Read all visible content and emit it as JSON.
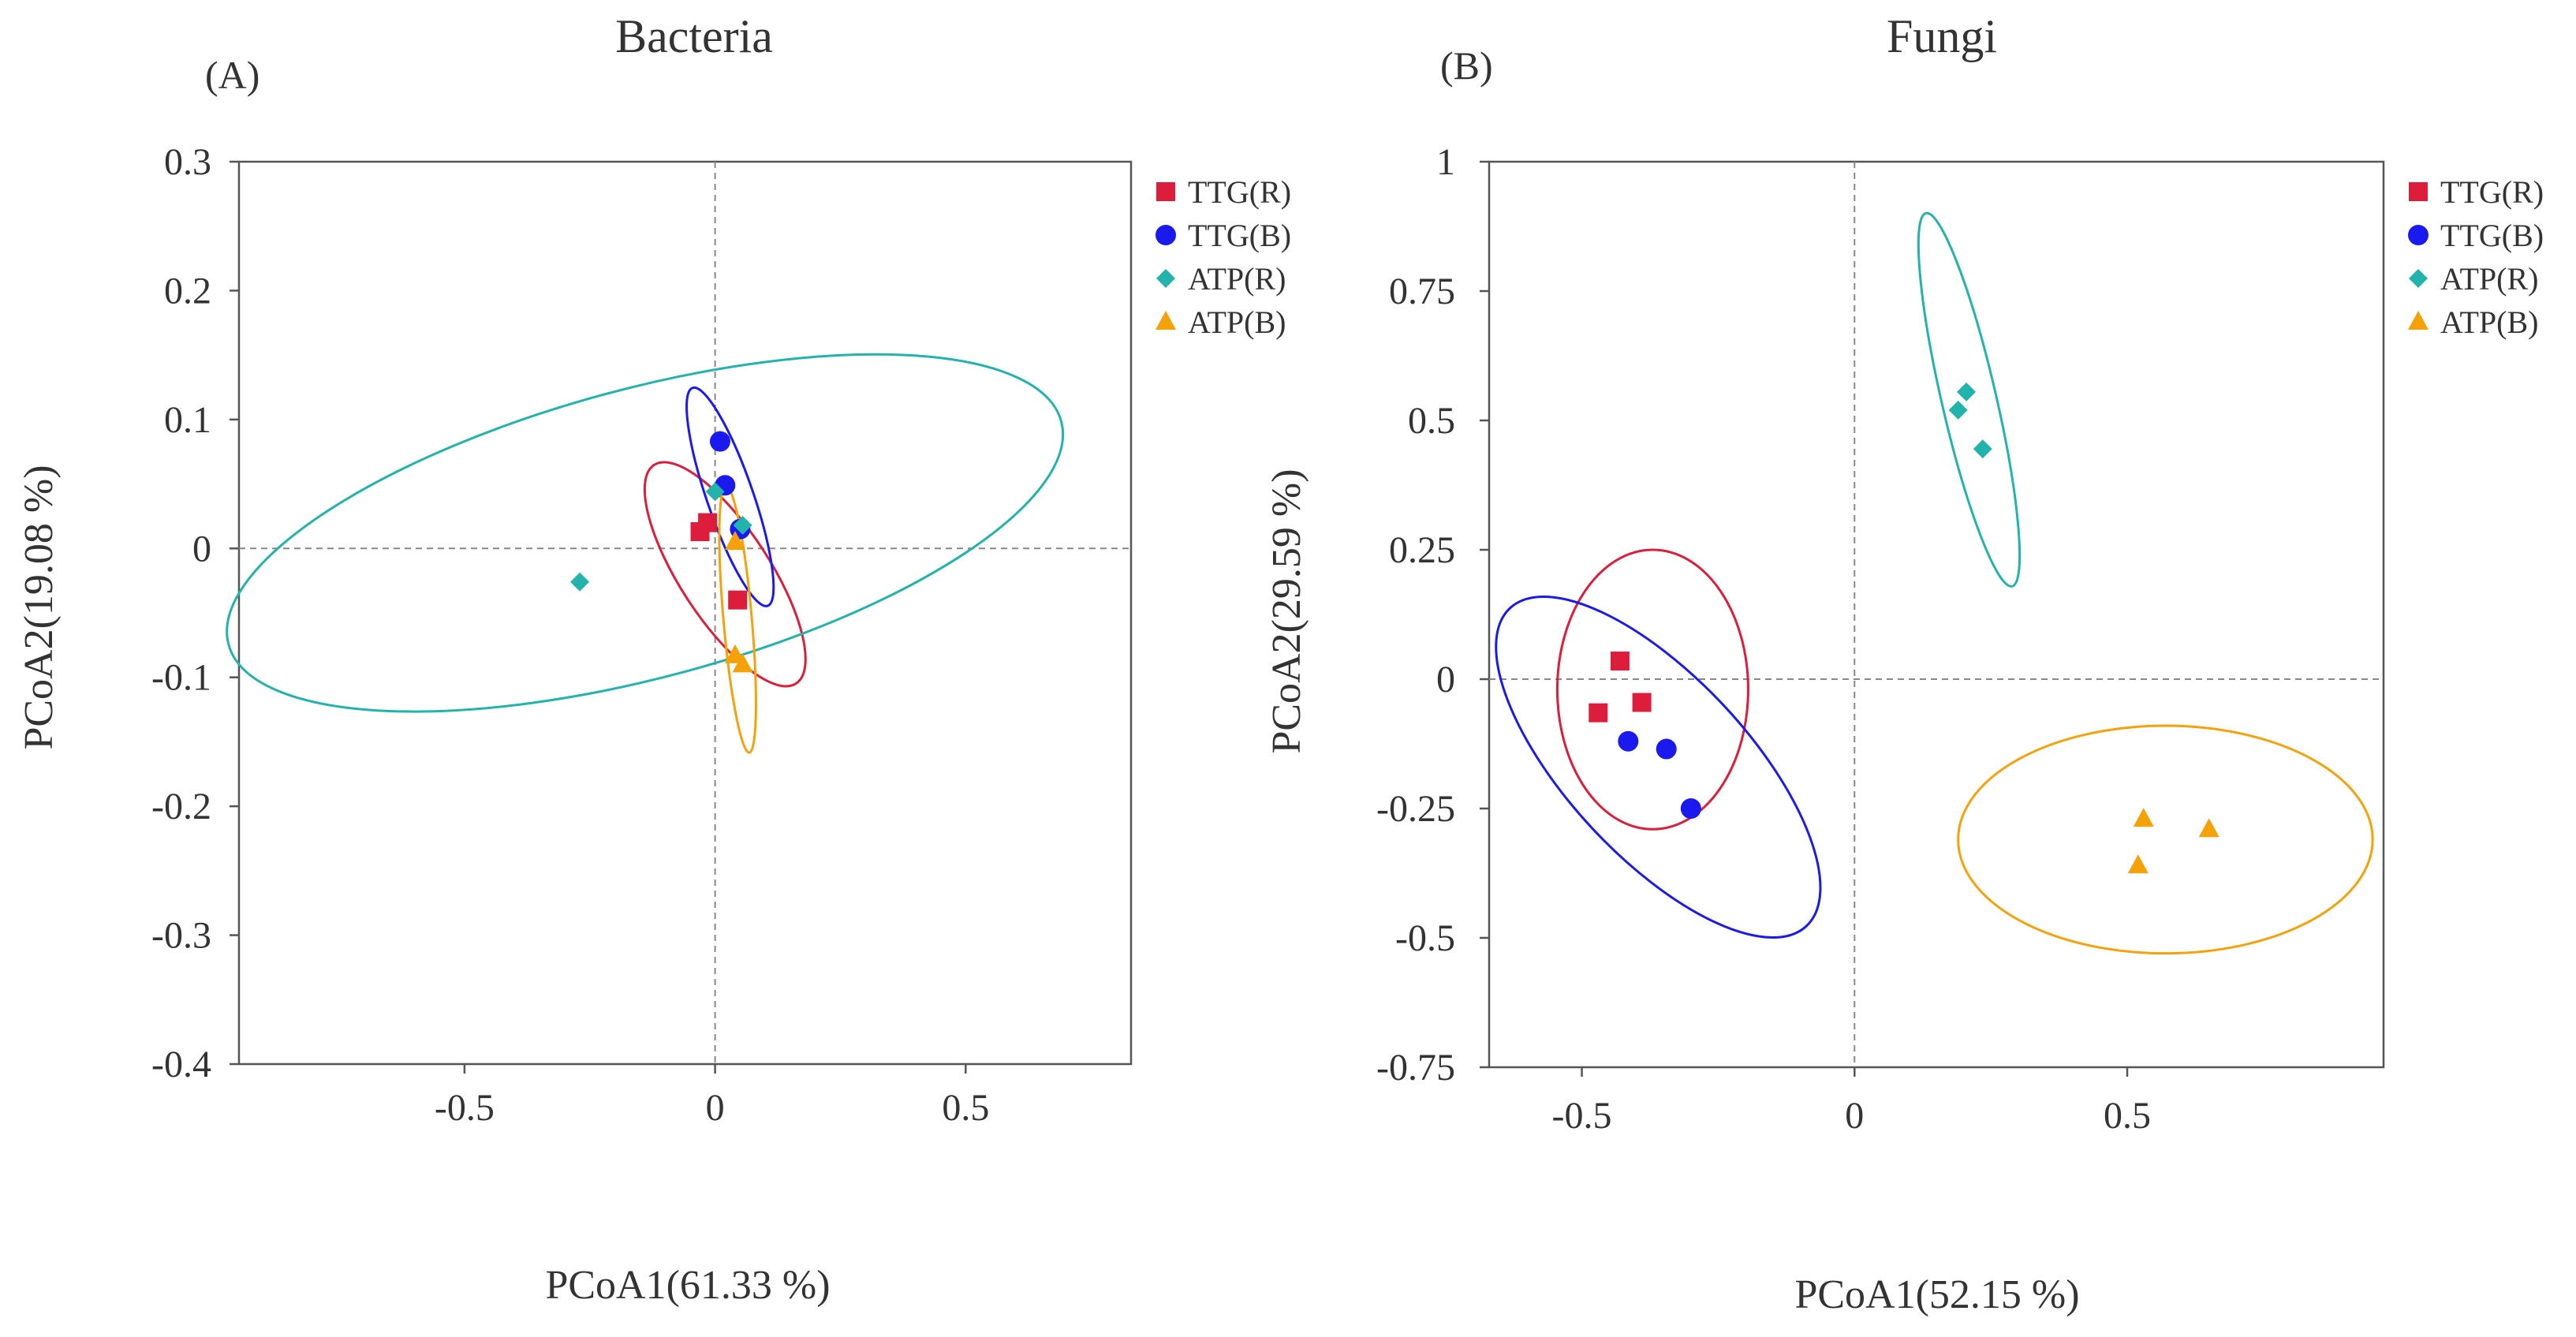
{
  "chart_data": [
    {
      "type": "scatter",
      "panel_tag": "(A)",
      "title": "Bacteria",
      "xlabel": "PCoA1(61.33 %)",
      "ylabel": "PCoA2(19.08 %)",
      "xlim": [
        -0.95,
        0.83
      ],
      "ylim": [
        -0.4,
        0.3
      ],
      "xticks": [
        -0.5,
        0,
        0.5
      ],
      "xtick_labels": [
        "-0.5",
        "0",
        "0.5"
      ],
      "yticks": [
        -0.4,
        -0.3,
        -0.2,
        -0.1,
        0,
        0.1,
        0.2,
        0.3
      ],
      "ytick_labels": [
        "-0.4",
        "-0.3",
        "-0.2",
        "-0.1",
        "0",
        "0.1",
        "0.2",
        "0.3"
      ],
      "grid": false,
      "reference_lines": {
        "x": 0,
        "y": 0
      },
      "legend_position": "outside-right-top",
      "series": [
        {
          "name": "TTG(R)",
          "marker": "square",
          "color": "#dc1e3c",
          "points": [
            [
              -0.03,
              0.013
            ],
            [
              -0.015,
              0.02
            ],
            [
              0.045,
              -0.04
            ]
          ],
          "ellipse": {
            "cx": 0.02,
            "cy": -0.02,
            "rx": 0.26,
            "ry": 0.035,
            "angle_deg": -57
          }
        },
        {
          "name": "TTG(B)",
          "marker": "circle",
          "color": "#1a1aee",
          "points": [
            [
              0.01,
              0.083
            ],
            [
              0.02,
              0.049
            ],
            [
              0.05,
              0.015
            ]
          ],
          "ellipse": {
            "cx": 0.03,
            "cy": 0.04,
            "rx": 0.23,
            "ry": 0.018,
            "angle_deg": -71
          }
        },
        {
          "name": "ATP(R)",
          "marker": "diamond",
          "color": "#22b3ad",
          "points": [
            [
              -0.27,
              -0.026
            ],
            [
              0.0,
              0.044
            ],
            [
              0.055,
              0.018
            ]
          ],
          "ellipse": {
            "cx": -0.14,
            "cy": 0.012,
            "rx": 0.86,
            "ry": 0.112,
            "angle_deg": 15
          }
        },
        {
          "name": "ATP(B)",
          "marker": "triangle",
          "color": "#f5a20a",
          "points": [
            [
              0.04,
              0.005
            ],
            [
              0.04,
              -0.083
            ],
            [
              0.055,
              -0.09
            ]
          ],
          "ellipse": {
            "cx": 0.045,
            "cy": -0.055,
            "rx": 0.267,
            "ry": 0.011,
            "angle_deg": -85
          }
        }
      ]
    },
    {
      "type": "scatter",
      "panel_tag": "(B)",
      "title": "Fungi",
      "xlabel": "PCoA1(52.15 %)",
      "ylabel": "PCoA2(29.59 %)",
      "xlim": [
        -0.67,
        0.97
      ],
      "ylim": [
        -0.75,
        1.0
      ],
      "xticks": [
        -0.5,
        0,
        0.5
      ],
      "xtick_labels": [
        "-0.5",
        "0",
        "0.5"
      ],
      "yticks": [
        -0.75,
        -0.5,
        -0.25,
        0,
        0.25,
        0.5,
        0.75,
        1
      ],
      "ytick_labels": [
        "-0.75",
        "-0.5",
        "-0.25",
        "0",
        "0.25",
        "0.5",
        "0.75",
        "1"
      ],
      "grid": false,
      "reference_lines": {
        "x": 0,
        "y": 0
      },
      "legend_position": "outside-right-top",
      "series": [
        {
          "name": "TTG(R)",
          "marker": "square",
          "color": "#dc1e3c",
          "points": [
            [
              -0.47,
              -0.065
            ],
            [
              -0.43,
              0.035
            ],
            [
              -0.39,
              -0.045
            ]
          ],
          "ellipse": {
            "cx": -0.37,
            "cy": -0.02,
            "rx": 0.175,
            "ry": 0.27,
            "angle_deg": 0
          }
        },
        {
          "name": "TTG(B)",
          "marker": "circle",
          "color": "#1a1aee",
          "points": [
            [
              -0.415,
              -0.12
            ],
            [
              -0.345,
              -0.135
            ],
            [
              -0.3,
              -0.25
            ]
          ],
          "ellipse": {
            "cx": -0.36,
            "cy": -0.17,
            "rx": 0.165,
            "ry": 0.42,
            "angle_deg": 43
          }
        },
        {
          "name": "ATP(R)",
          "marker": "diamond",
          "color": "#22b3ad",
          "points": [
            [
              0.19,
              0.52
            ],
            [
              0.205,
              0.555
            ],
            [
              0.235,
              0.445
            ]
          ],
          "ellipse": {
            "cx": 0.21,
            "cy": 0.54,
            "rx": 0.05,
            "ry": 0.37,
            "angle_deg": 13
          }
        },
        {
          "name": "ATP(B)",
          "marker": "triangle",
          "color": "#f5a20a",
          "points": [
            [
              0.52,
              -0.36
            ],
            [
              0.53,
              -0.27
            ],
            [
              0.65,
              -0.29
            ]
          ],
          "ellipse": {
            "cx": 0.57,
            "cy": -0.31,
            "rx": 0.38,
            "ry": 0.22,
            "angle_deg": 0
          }
        }
      ]
    }
  ]
}
